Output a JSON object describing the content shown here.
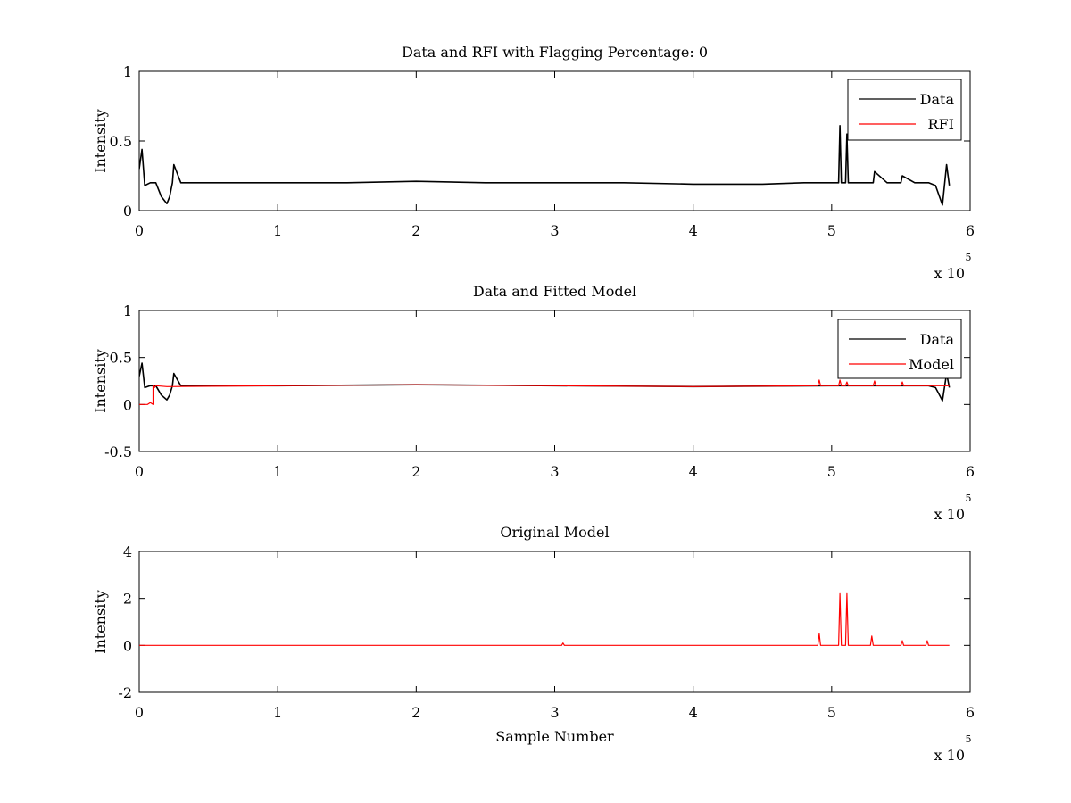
{
  "chart_data": [
    {
      "type": "line",
      "title": "Data and RFI with Flagging Percentage: 0",
      "xlabel": "",
      "ylabel": "Intensity",
      "xlim": [
        0,
        600000
      ],
      "ylim": [
        0,
        1
      ],
      "xticks": [
        0,
        1,
        2,
        3,
        4,
        5,
        6
      ],
      "yticks": [
        "0",
        "0.5",
        "1"
      ],
      "yticks_values": [
        0,
        0.5,
        1
      ],
      "x_exponent_label": "x 10",
      "x_exponent_power": "5",
      "legend": {
        "position": "top-right",
        "entries": [
          "Data",
          "RFI"
        ]
      },
      "colors": {
        "Data": "#000000",
        "RFI": "#ff0000"
      },
      "series": [
        {
          "name": "Data",
          "color": "#000000",
          "x": [
            0,
            2000,
            4000,
            8000,
            12000,
            16000,
            20000,
            22000,
            24000,
            25000,
            30000,
            50000,
            100000,
            150000,
            200000,
            250000,
            300000,
            350000,
            400000,
            450000,
            480000,
            490000,
            500000,
            505000,
            506000,
            507000,
            508000,
            510000,
            511000,
            512000,
            520000,
            530000,
            531000,
            540000,
            550000,
            551000,
            560000,
            565000,
            570000,
            575000,
            580000,
            583000,
            585000
          ],
          "y": [
            0.3,
            0.44,
            0.18,
            0.2,
            0.2,
            0.1,
            0.05,
            0.1,
            0.2,
            0.33,
            0.2,
            0.2,
            0.2,
            0.2,
            0.21,
            0.2,
            0.2,
            0.2,
            0.19,
            0.19,
            0.2,
            0.2,
            0.2,
            0.2,
            0.61,
            0.2,
            0.2,
            0.2,
            0.55,
            0.2,
            0.2,
            0.2,
            0.28,
            0.2,
            0.2,
            0.25,
            0.2,
            0.2,
            0.2,
            0.18,
            0.04,
            0.33,
            0.18
          ]
        }
      ]
    },
    {
      "type": "line",
      "title": "Data and Fitted Model",
      "xlabel": "",
      "ylabel": "Intensity",
      "xlim": [
        0,
        600000
      ],
      "ylim": [
        -0.5,
        1
      ],
      "xticks": [
        0,
        1,
        2,
        3,
        4,
        5,
        6
      ],
      "yticks": [
        "-0.5",
        "0",
        "0.5",
        "1"
      ],
      "yticks_values": [
        -0.5,
        0,
        0.5,
        1
      ],
      "x_exponent_label": "x 10",
      "x_exponent_power": "5",
      "legend": {
        "position": "top-right",
        "entries": [
          "Data",
          "Model"
        ]
      },
      "colors": {
        "Data": "#000000",
        "Model": "#ff0000"
      },
      "series": [
        {
          "name": "Data",
          "color": "#000000",
          "x": [
            0,
            2000,
            4000,
            8000,
            12000,
            16000,
            20000,
            22000,
            24000,
            25000,
            30000,
            100000,
            200000,
            300000,
            400000,
            500000,
            550000,
            570000,
            575000,
            580000,
            583000,
            585000
          ],
          "y": [
            0.3,
            0.44,
            0.18,
            0.2,
            0.2,
            0.1,
            0.05,
            0.1,
            0.2,
            0.33,
            0.2,
            0.2,
            0.21,
            0.2,
            0.19,
            0.2,
            0.2,
            0.2,
            0.18,
            0.04,
            0.33,
            0.18
          ]
        },
        {
          "name": "Model",
          "color": "#ff0000",
          "x": [
            0,
            6000,
            8000,
            9999,
            10000,
            11000,
            12000,
            20000,
            100000,
            200000,
            300000,
            400000,
            490000,
            491000,
            492000,
            505000,
            506000,
            507000,
            510000,
            511000,
            512000,
            530000,
            531000,
            532000,
            550000,
            551000,
            552000,
            585000
          ],
          "y": [
            0.0,
            0.0,
            0.02,
            0.0,
            0.2,
            0.18,
            0.2,
            0.19,
            0.2,
            0.21,
            0.2,
            0.19,
            0.2,
            0.26,
            0.2,
            0.2,
            0.26,
            0.2,
            0.2,
            0.24,
            0.2,
            0.2,
            0.25,
            0.2,
            0.2,
            0.24,
            0.2,
            0.2
          ]
        }
      ]
    },
    {
      "type": "line",
      "title": "Original Model",
      "xlabel": "Sample Number",
      "ylabel": "Intensity",
      "xlim": [
        0,
        600000
      ],
      "ylim": [
        -2,
        4
      ],
      "xticks": [
        0,
        1,
        2,
        3,
        4,
        5,
        6
      ],
      "yticks": [
        "-2",
        "0",
        "2",
        "4"
      ],
      "yticks_values": [
        -2,
        0,
        2,
        4
      ],
      "x_exponent_label": "x 10",
      "x_exponent_power": "5",
      "colors": {
        "Model": "#ff0000"
      },
      "series": [
        {
          "color": "#ff0000",
          "x": [
            0,
            100000,
            200000,
            300000,
            305000,
            306000,
            307000,
            400000,
            490000,
            491000,
            492000,
            505000,
            506000,
            507000,
            510000,
            511000,
            512000,
            528000,
            529000,
            530000,
            550000,
            551000,
            552000,
            568000,
            569000,
            570000,
            585000
          ],
          "y": [
            0,
            0,
            0,
            0,
            0,
            0.1,
            0,
            0,
            0,
            0.5,
            0,
            0,
            2.2,
            0,
            0,
            2.2,
            0,
            0,
            0.4,
            0,
            0,
            0.2,
            0,
            0,
            0.2,
            0,
            0
          ]
        }
      ]
    }
  ]
}
